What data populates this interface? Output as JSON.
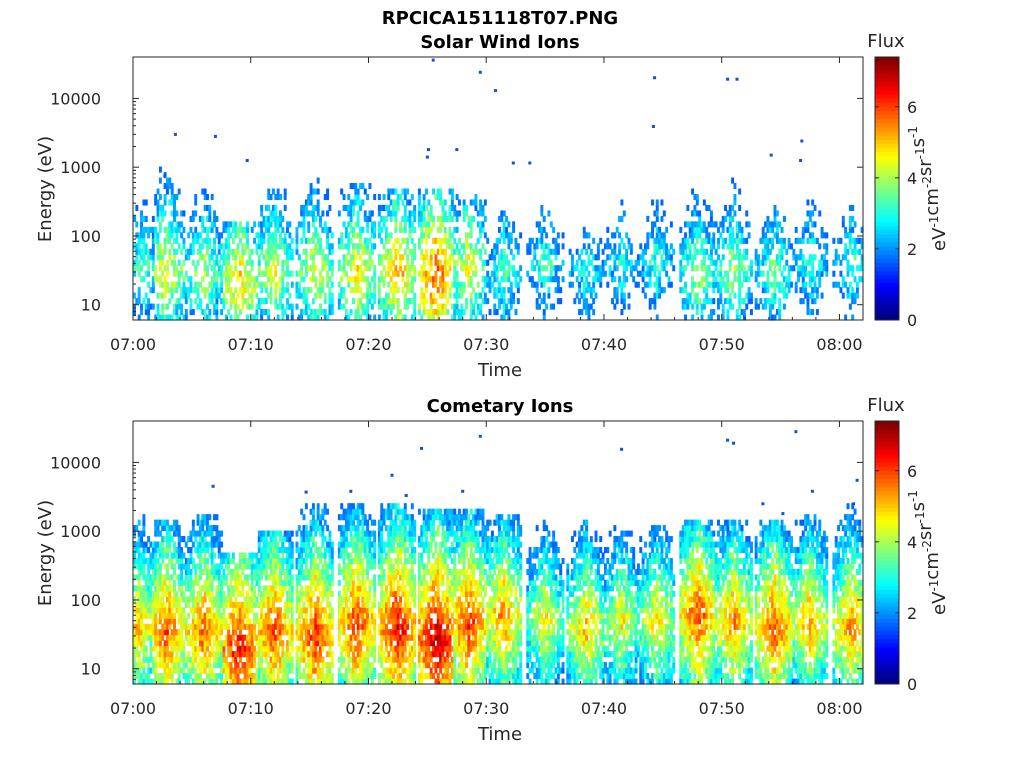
{
  "figure": {
    "title": "RPCICA151118T07.PNG"
  },
  "chart_data": [
    {
      "type": "heatmap",
      "title": "Solar Wind Ions",
      "xlabel": "Time",
      "ylabel": "Energy (eV)",
      "x_ticks": [
        "07:00",
        "07:10",
        "07:20",
        "07:30",
        "07:40",
        "07:50",
        "08:00"
      ],
      "x_range_minutes": [
        0,
        62
      ],
      "y_scale": "log",
      "y_ticks": [
        "10",
        "100",
        "1000",
        "10000"
      ],
      "y_range": [
        6,
        40000
      ],
      "colorbar": {
        "title": "Flux",
        "label": "eV-1cm-2sr-1s-1",
        "ticks": [
          "0",
          "2",
          "4",
          "6"
        ],
        "range": [
          0,
          7.4
        ]
      },
      "mode": "solar",
      "bursts": [
        {
          "t": 0.8,
          "f": 3.6,
          "peak": 35,
          "top": 400
        },
        {
          "t": 2.8,
          "f": 4.8,
          "peak": 30,
          "top": 700
        },
        {
          "t": 6.0,
          "f": 4.3,
          "peak": 30,
          "top": 350
        },
        {
          "t": 9.0,
          "f": 5.1,
          "peak": 22,
          "top": 110
        },
        {
          "t": 12.0,
          "f": 4.6,
          "peak": 30,
          "top": 300
        },
        {
          "t": 15.5,
          "f": 4.6,
          "peak": 30,
          "top": 450
        },
        {
          "t": 19.0,
          "f": 4.9,
          "peak": 30,
          "top": 350
        },
        {
          "t": 22.5,
          "f": 5.3,
          "peak": 30,
          "top": 300
        },
        {
          "t": 25.8,
          "f": 6.0,
          "peak": 25,
          "top": 300
        },
        {
          "t": 28.5,
          "f": 4.7,
          "peak": 35,
          "top": 250
        },
        {
          "t": 31.5,
          "f": 3.6,
          "peak": 30,
          "top": 700
        },
        {
          "t": 35.0,
          "f": 3.4,
          "peak": 40,
          "top": 400
        },
        {
          "t": 38.5,
          "f": 3.2,
          "peak": 30,
          "top": 300
        },
        {
          "t": 41.5,
          "f": 3.2,
          "peak": 40,
          "top": 300
        },
        {
          "t": 44.5,
          "f": 3.4,
          "peak": 40,
          "top": 300
        },
        {
          "t": 48.0,
          "f": 4.2,
          "peak": 30,
          "top": 400
        },
        {
          "t": 51.0,
          "f": 4.2,
          "peak": 30,
          "top": 450
        },
        {
          "t": 54.5,
          "f": 3.8,
          "peak": 30,
          "top": 400
        },
        {
          "t": 57.5,
          "f": 3.4,
          "peak": 40,
          "top": 300
        },
        {
          "t": 61.0,
          "f": 3.4,
          "peak": 40,
          "top": 300
        }
      ],
      "outliers": [
        {
          "t": 25.5,
          "e": 36000
        },
        {
          "t": 29.5,
          "e": 24000
        },
        {
          "t": 30.8,
          "e": 13000
        },
        {
          "t": 3.6,
          "e": 3000
        },
        {
          "t": 7.0,
          "e": 2800
        },
        {
          "t": 9.7,
          "e": 1250
        },
        {
          "t": 2.7,
          "e": 750
        },
        {
          "t": 25.1,
          "e": 1800
        },
        {
          "t": 27.5,
          "e": 1800
        },
        {
          "t": 25.0,
          "e": 1400
        },
        {
          "t": 32.3,
          "e": 1150
        },
        {
          "t": 33.7,
          "e": 1150
        },
        {
          "t": 44.3,
          "e": 20000
        },
        {
          "t": 44.2,
          "e": 3900
        },
        {
          "t": 50.5,
          "e": 19000
        },
        {
          "t": 51.3,
          "e": 19000
        },
        {
          "t": 54.2,
          "e": 1500
        },
        {
          "t": 56.8,
          "e": 2400
        },
        {
          "t": 56.7,
          "e": 1250
        }
      ]
    },
    {
      "type": "heatmap",
      "title": "Cometary Ions",
      "xlabel": "Time",
      "ylabel": "Energy (eV)",
      "x_ticks": [
        "07:00",
        "07:10",
        "07:20",
        "07:30",
        "07:40",
        "07:50",
        "08:00"
      ],
      "x_range_minutes": [
        0,
        62
      ],
      "y_scale": "log",
      "y_ticks": [
        "10",
        "100",
        "1000",
        "10000"
      ],
      "y_range": [
        6,
        40000
      ],
      "colorbar": {
        "title": "Flux",
        "label": "eV-1cm-2sr-1s-1",
        "ticks": [
          "0",
          "2",
          "4",
          "6"
        ],
        "range": [
          0,
          7.4
        ]
      },
      "mode": "comet",
      "bursts": [
        {
          "t": 0.5,
          "f": 5.2,
          "peak": 40,
          "top": 1200
        },
        {
          "t": 2.8,
          "f": 6.0,
          "peak": 35,
          "top": 900
        },
        {
          "t": 6.0,
          "f": 5.9,
          "peak": 35,
          "top": 1100
        },
        {
          "t": 9.0,
          "f": 6.6,
          "peak": 20,
          "top": 300
        },
        {
          "t": 12.0,
          "f": 6.1,
          "peak": 35,
          "top": 600
        },
        {
          "t": 15.5,
          "f": 6.3,
          "peak": 30,
          "top": 1500
        },
        {
          "t": 19.0,
          "f": 6.2,
          "peak": 45,
          "top": 1600
        },
        {
          "t": 22.5,
          "f": 6.6,
          "peak": 40,
          "top": 1500
        },
        {
          "t": 25.8,
          "f": 7.0,
          "peak": 25,
          "top": 1400
        },
        {
          "t": 28.5,
          "f": 6.2,
          "peak": 45,
          "top": 1400
        },
        {
          "t": 31.5,
          "f": 5.6,
          "peak": 60,
          "top": 1200
        },
        {
          "t": 35.0,
          "f": 4.8,
          "peak": 50,
          "top": 900
        },
        {
          "t": 38.5,
          "f": 5.2,
          "peak": 40,
          "top": 900
        },
        {
          "t": 41.5,
          "f": 4.8,
          "peak": 50,
          "top": 800
        },
        {
          "t": 44.5,
          "f": 5.0,
          "peak": 50,
          "top": 800
        },
        {
          "t": 48.0,
          "f": 6.0,
          "peak": 60,
          "top": 1000
        },
        {
          "t": 51.0,
          "f": 5.6,
          "peak": 50,
          "top": 1000
        },
        {
          "t": 54.5,
          "f": 6.0,
          "peak": 40,
          "top": 1000
        },
        {
          "t": 57.5,
          "f": 5.4,
          "peak": 50,
          "top": 1200
        },
        {
          "t": 61.0,
          "f": 5.6,
          "peak": 40,
          "top": 1500
        }
      ],
      "outliers": [
        {
          "t": 29.5,
          "e": 24000
        },
        {
          "t": 22.0,
          "e": 6500
        },
        {
          "t": 24.5,
          "e": 16000
        },
        {
          "t": 28.0,
          "e": 3800
        },
        {
          "t": 23.2,
          "e": 3300
        },
        {
          "t": 14.7,
          "e": 3700
        },
        {
          "t": 18.5,
          "e": 3800
        },
        {
          "t": 6.8,
          "e": 4500
        },
        {
          "t": 41.5,
          "e": 15500
        },
        {
          "t": 50.5,
          "e": 21000
        },
        {
          "t": 51.0,
          "e": 19000
        },
        {
          "t": 56.3,
          "e": 28000
        },
        {
          "t": 57.7,
          "e": 3800
        },
        {
          "t": 61.5,
          "e": 5500
        },
        {
          "t": 61.2,
          "e": 2500
        },
        {
          "t": 53.5,
          "e": 2500
        },
        {
          "t": 55.2,
          "e": 1800
        }
      ]
    }
  ]
}
